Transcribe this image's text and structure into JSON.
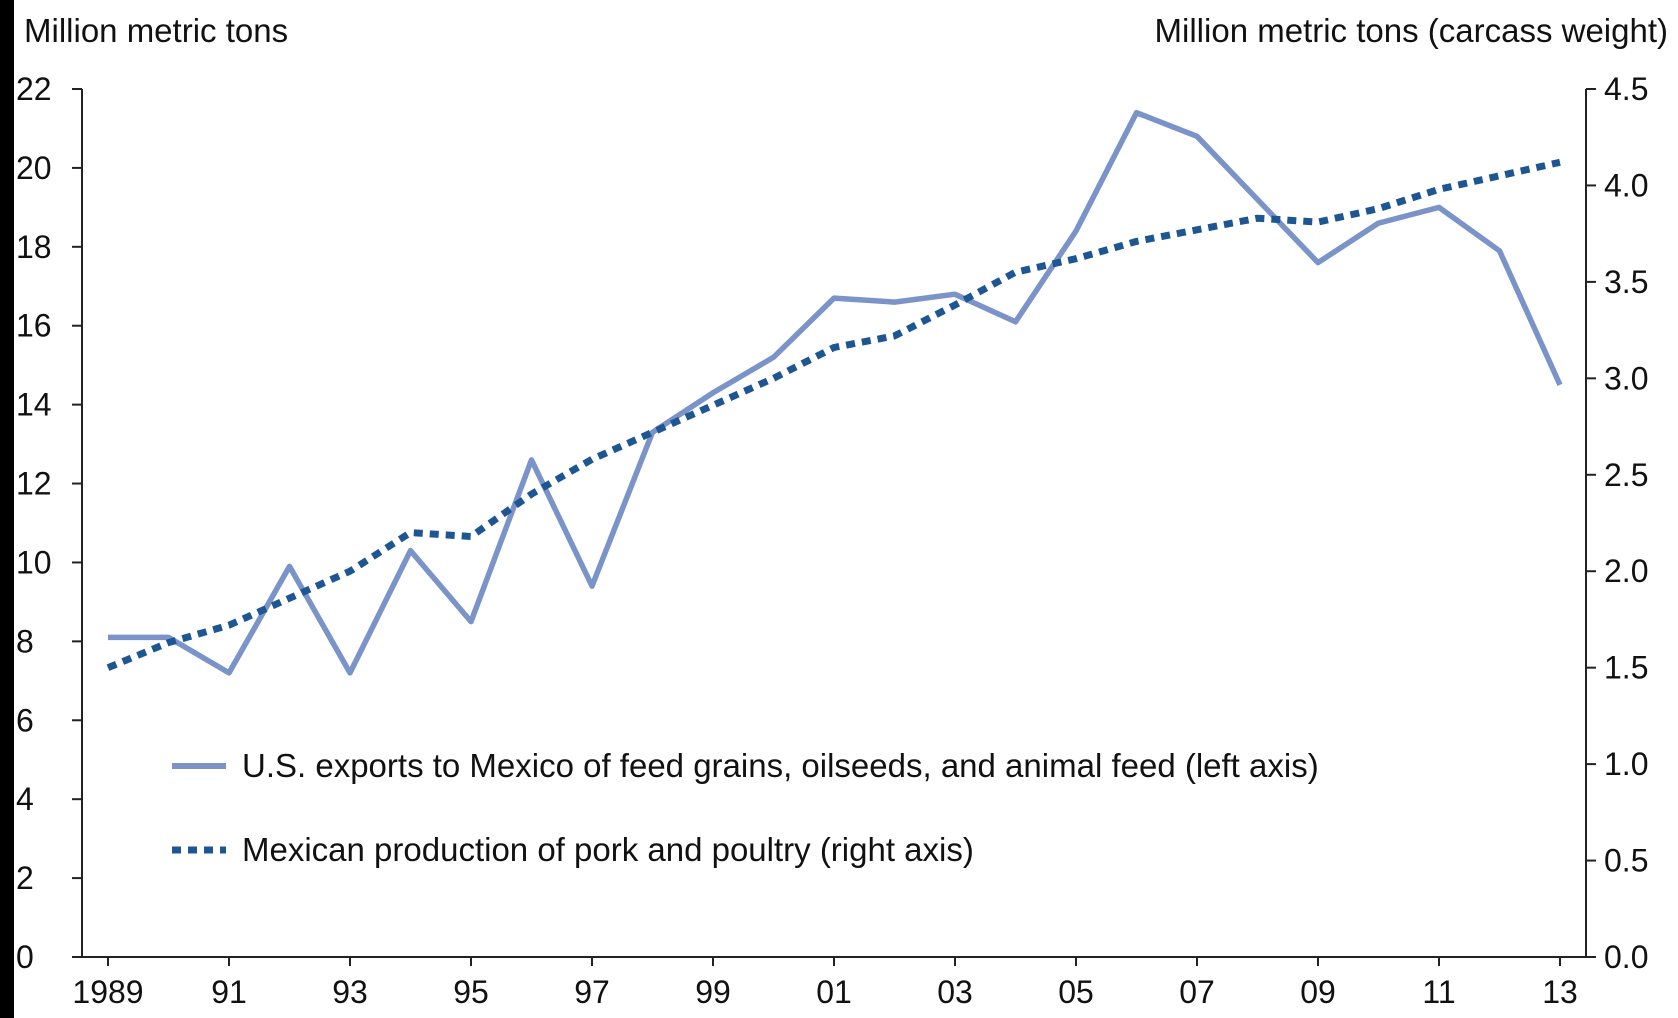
{
  "chart_data": {
    "type": "line",
    "left_axis_title": "Million metric tons",
    "right_axis_title": "Million metric tons (carcass weight)",
    "x": [
      1989,
      1990,
      1991,
      1992,
      1993,
      1994,
      1995,
      1996,
      1997,
      1998,
      1999,
      2000,
      2001,
      2002,
      2003,
      2004,
      2005,
      2006,
      2007,
      2008,
      2009,
      2010,
      2011,
      2012,
      2013
    ],
    "x_tick_values": [
      1989,
      1991,
      1993,
      1995,
      1997,
      1999,
      2001,
      2003,
      2005,
      2007,
      2009,
      2011,
      2013
    ],
    "x_tick_labels": [
      "1989",
      "91",
      "93",
      "95",
      "97",
      "99",
      "01",
      "03",
      "05",
      "07",
      "09",
      "11",
      "13"
    ],
    "y_left_ticks": [
      "0",
      "2",
      "4",
      "6",
      "8",
      "10",
      "12",
      "14",
      "16",
      "18",
      "20",
      "22"
    ],
    "y_right_ticks": [
      "0.0",
      "0.5",
      "1.0",
      "1.5",
      "2.0",
      "2.5",
      "3.0",
      "3.5",
      "4.0",
      "4.5"
    ],
    "y_left_lim": [
      0,
      22
    ],
    "y_right_lim": [
      0,
      4.5
    ],
    "grid": false,
    "legend_position": "lower-left inside plot",
    "series": [
      {
        "name": "U.S. exports to Mexico of feed grains, oilseeds, and animal feed (left axis)",
        "axis": "left",
        "style": "solid",
        "color": "#7a93c8",
        "values": [
          8.1,
          8.1,
          7.2,
          9.9,
          7.2,
          10.3,
          8.5,
          12.6,
          9.4,
          13.3,
          14.3,
          15.2,
          16.7,
          16.6,
          16.8,
          16.1,
          18.4,
          21.4,
          20.8,
          19.2,
          17.6,
          18.6,
          19.0,
          17.9,
          14.5
        ]
      },
      {
        "name": "Mexican production of pork and poultry (right axis)",
        "axis": "right",
        "style": "dotted",
        "color": "#1d5692",
        "values": [
          1.5,
          1.63,
          1.72,
          1.86,
          2.0,
          2.2,
          2.18,
          2.4,
          2.58,
          2.72,
          2.86,
          3.0,
          3.16,
          3.22,
          3.38,
          3.55,
          3.62,
          3.71,
          3.77,
          3.83,
          3.81,
          3.88,
          3.98,
          4.05,
          4.12
        ]
      }
    ]
  }
}
